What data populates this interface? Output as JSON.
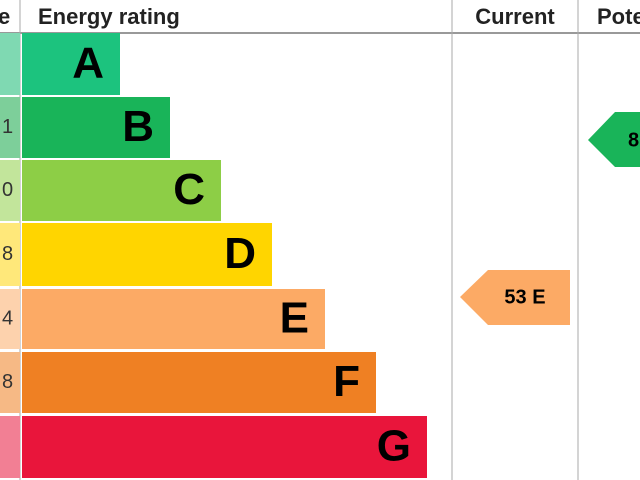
{
  "header": {
    "score": "e",
    "rating": "Energy rating",
    "current": "Current",
    "potential": "Pote"
  },
  "bands": [
    {
      "score": "",
      "letter": "A"
    },
    {
      "score": "1",
      "letter": "B"
    },
    {
      "score": "0",
      "letter": "C"
    },
    {
      "score": "8",
      "letter": "D"
    },
    {
      "score": "4",
      "letter": "E"
    },
    {
      "score": "8",
      "letter": "F"
    },
    {
      "score": "",
      "letter": "G"
    }
  ],
  "current": "53 E",
  "potential": "8"
}
